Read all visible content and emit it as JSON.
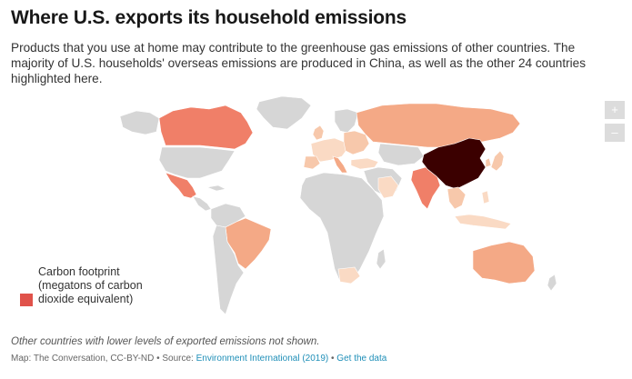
{
  "title": "Where U.S. exports its household emissions",
  "description": "Products that you use at home may contribute to the greenhouse gas emissions of other countries. The majority of U.S. households' overseas emissions are produced in China, as well as the other 24 countries highlighted here.",
  "zoom": {
    "in_label": "+",
    "out_label": "–"
  },
  "legend": {
    "title": "Carbon footprint\n(megatons of carbon\ndioxide equivalent)",
    "swatch_color": "#e0524a"
  },
  "note": "Other countries with lower levels of exported emissions not shown.",
  "footer": {
    "credit": "Map: The Conversation, CC-BY-ND • Source: ",
    "source_link": "Environment International (2019)",
    "separator": " • ",
    "data_link": "Get the data"
  },
  "colors": {
    "no_data": "#d6d6d6",
    "china": "#3b0000",
    "high": "#f07f68",
    "medium": "#f4a986",
    "low": "#f7c8ab",
    "lowest": "#fadac4"
  }
}
